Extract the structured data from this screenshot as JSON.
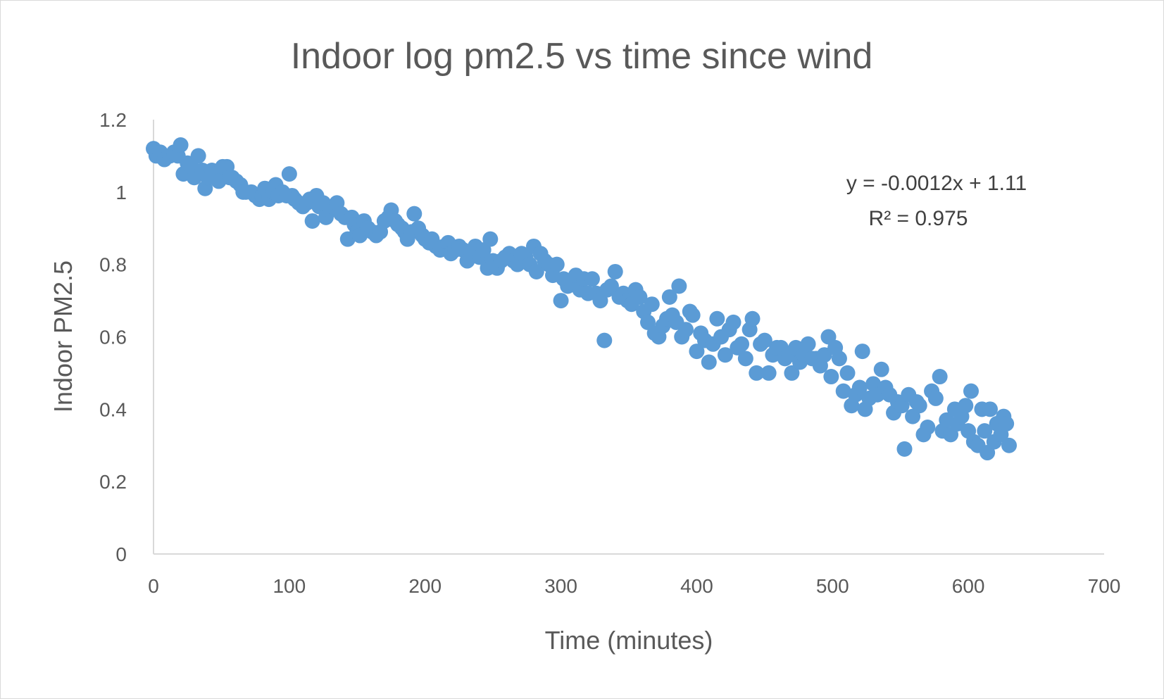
{
  "chart_data": {
    "type": "scatter",
    "title": "Indoor log pm2.5 vs time since wind",
    "xlabel": "Time (minutes)",
    "ylabel": "Indoor PM2.5",
    "xlim": [
      0,
      700
    ],
    "ylim": [
      0,
      1.2
    ],
    "x_ticks": [
      "0",
      "100",
      "200",
      "300",
      "400",
      "500",
      "600",
      "700"
    ],
    "y_ticks": [
      "0",
      "0.2",
      "0.4",
      "0.6",
      "0.8",
      "1",
      "1.2"
    ],
    "grid": false,
    "legend": "none",
    "marker_color": "#5b9bd5",
    "axis_color": "#d9d9d9",
    "trendline": {
      "equation": "y = -0.0012x + 1.11",
      "r_squared": "R² = 0.975"
    },
    "points": [
      [
        0,
        1.12
      ],
      [
        2,
        1.1
      ],
      [
        5,
        1.11
      ],
      [
        8,
        1.09
      ],
      [
        12,
        1.1
      ],
      [
        15,
        1.11
      ],
      [
        18,
        1.1
      ],
      [
        20,
        1.13
      ],
      [
        22,
        1.05
      ],
      [
        25,
        1.08
      ],
      [
        28,
        1.07
      ],
      [
        30,
        1.04
      ],
      [
        33,
        1.1
      ],
      [
        36,
        1.06
      ],
      [
        38,
        1.01
      ],
      [
        40,
        1.04
      ],
      [
        43,
        1.06
      ],
      [
        46,
        1.05
      ],
      [
        48,
        1.03
      ],
      [
        51,
        1.07
      ],
      [
        54,
        1.07
      ],
      [
        56,
        1.04
      ],
      [
        58,
        1.04
      ],
      [
        61,
        1.03
      ],
      [
        64,
        1.02
      ],
      [
        66,
        1.0
      ],
      [
        68,
        1.0
      ],
      [
        72,
        1.0
      ],
      [
        75,
        0.99
      ],
      [
        78,
        0.98
      ],
      [
        80,
        0.99
      ],
      [
        82,
        1.01
      ],
      [
        85,
        0.98
      ],
      [
        88,
        1.0
      ],
      [
        90,
        1.02
      ],
      [
        92,
        0.99
      ],
      [
        95,
        1.0
      ],
      [
        98,
        0.99
      ],
      [
        100,
        1.05
      ],
      [
        102,
        0.99
      ],
      [
        104,
        0.98
      ],
      [
        107,
        0.97
      ],
      [
        110,
        0.96
      ],
      [
        113,
        0.97
      ],
      [
        115,
        0.98
      ],
      [
        117,
        0.92
      ],
      [
        120,
        0.99
      ],
      [
        122,
        0.96
      ],
      [
        125,
        0.97
      ],
      [
        127,
        0.93
      ],
      [
        130,
        0.95
      ],
      [
        132,
        0.96
      ],
      [
        135,
        0.97
      ],
      [
        138,
        0.94
      ],
      [
        141,
        0.93
      ],
      [
        143,
        0.87
      ],
      [
        146,
        0.93
      ],
      [
        148,
        0.91
      ],
      [
        150,
        0.89
      ],
      [
        152,
        0.88
      ],
      [
        155,
        0.92
      ],
      [
        158,
        0.9
      ],
      [
        161,
        0.89
      ],
      [
        164,
        0.88
      ],
      [
        167,
        0.89
      ],
      [
        170,
        0.92
      ],
      [
        173,
        0.93
      ],
      [
        175,
        0.95
      ],
      [
        178,
        0.92
      ],
      [
        180,
        0.91
      ],
      [
        183,
        0.9
      ],
      [
        185,
        0.89
      ],
      [
        187,
        0.87
      ],
      [
        190,
        0.89
      ],
      [
        192,
        0.94
      ],
      [
        195,
        0.9
      ],
      [
        198,
        0.88
      ],
      [
        200,
        0.87
      ],
      [
        203,
        0.86
      ],
      [
        205,
        0.87
      ],
      [
        208,
        0.85
      ],
      [
        211,
        0.84
      ],
      [
        214,
        0.85
      ],
      [
        217,
        0.86
      ],
      [
        219,
        0.83
      ],
      [
        222,
        0.84
      ],
      [
        225,
        0.85
      ],
      [
        228,
        0.84
      ],
      [
        231,
        0.81
      ],
      [
        234,
        0.83
      ],
      [
        237,
        0.85
      ],
      [
        240,
        0.82
      ],
      [
        243,
        0.84
      ],
      [
        246,
        0.79
      ],
      [
        248,
        0.87
      ],
      [
        250,
        0.81
      ],
      [
        253,
        0.79
      ],
      [
        256,
        0.81
      ],
      [
        259,
        0.82
      ],
      [
        262,
        0.83
      ],
      [
        265,
        0.81
      ],
      [
        268,
        0.8
      ],
      [
        271,
        0.83
      ],
      [
        274,
        0.82
      ],
      [
        277,
        0.8
      ],
      [
        280,
        0.85
      ],
      [
        282,
        0.78
      ],
      [
        285,
        0.83
      ],
      [
        288,
        0.81
      ],
      [
        291,
        0.8
      ],
      [
        294,
        0.77
      ],
      [
        297,
        0.8
      ],
      [
        300,
        0.7
      ],
      [
        302,
        0.76
      ],
      [
        305,
        0.74
      ],
      [
        308,
        0.75
      ],
      [
        311,
        0.77
      ],
      [
        314,
        0.73
      ],
      [
        317,
        0.76
      ],
      [
        320,
        0.72
      ],
      [
        323,
        0.76
      ],
      [
        326,
        0.72
      ],
      [
        329,
        0.7
      ],
      [
        332,
        0.59
      ],
      [
        334,
        0.73
      ],
      [
        337,
        0.74
      ],
      [
        340,
        0.78
      ],
      [
        343,
        0.71
      ],
      [
        346,
        0.72
      ],
      [
        349,
        0.7
      ],
      [
        352,
        0.69
      ],
      [
        355,
        0.73
      ],
      [
        358,
        0.71
      ],
      [
        361,
        0.67
      ],
      [
        364,
        0.64
      ],
      [
        367,
        0.69
      ],
      [
        369,
        0.61
      ],
      [
        372,
        0.6
      ],
      [
        375,
        0.63
      ],
      [
        378,
        0.65
      ],
      [
        380,
        0.71
      ],
      [
        382,
        0.66
      ],
      [
        385,
        0.64
      ],
      [
        387,
        0.74
      ],
      [
        389,
        0.6
      ],
      [
        392,
        0.62
      ],
      [
        395,
        0.67
      ],
      [
        397,
        0.66
      ],
      [
        400,
        0.56
      ],
      [
        403,
        0.61
      ],
      [
        406,
        0.59
      ],
      [
        409,
        0.53
      ],
      [
        412,
        0.58
      ],
      [
        415,
        0.65
      ],
      [
        418,
        0.6
      ],
      [
        421,
        0.55
      ],
      [
        424,
        0.62
      ],
      [
        427,
        0.64
      ],
      [
        430,
        0.57
      ],
      [
        433,
        0.58
      ],
      [
        436,
        0.54
      ],
      [
        439,
        0.62
      ],
      [
        441,
        0.65
      ],
      [
        444,
        0.5
      ],
      [
        447,
        0.58
      ],
      [
        450,
        0.59
      ],
      [
        453,
        0.5
      ],
      [
        456,
        0.55
      ],
      [
        459,
        0.57
      ],
      [
        462,
        0.57
      ],
      [
        465,
        0.54
      ],
      [
        468,
        0.55
      ],
      [
        470,
        0.5
      ],
      [
        473,
        0.57
      ],
      [
        476,
        0.53
      ],
      [
        479,
        0.55
      ],
      [
        482,
        0.58
      ],
      [
        485,
        0.54
      ],
      [
        488,
        0.54
      ],
      [
        491,
        0.52
      ],
      [
        494,
        0.55
      ],
      [
        497,
        0.6
      ],
      [
        499,
        0.49
      ],
      [
        502,
        0.57
      ],
      [
        505,
        0.54
      ],
      [
        508,
        0.45
      ],
      [
        511,
        0.5
      ],
      [
        514,
        0.41
      ],
      [
        517,
        0.44
      ],
      [
        520,
        0.46
      ],
      [
        522,
        0.56
      ],
      [
        524,
        0.4
      ],
      [
        527,
        0.43
      ],
      [
        530,
        0.47
      ],
      [
        533,
        0.44
      ],
      [
        536,
        0.51
      ],
      [
        539,
        0.46
      ],
      [
        542,
        0.44
      ],
      [
        545,
        0.39
      ],
      [
        548,
        0.42
      ],
      [
        551,
        0.41
      ],
      [
        553,
        0.29
      ],
      [
        556,
        0.44
      ],
      [
        559,
        0.38
      ],
      [
        562,
        0.42
      ],
      [
        564,
        0.41
      ],
      [
        567,
        0.33
      ],
      [
        570,
        0.35
      ],
      [
        573,
        0.45
      ],
      [
        576,
        0.43
      ],
      [
        579,
        0.49
      ],
      [
        581,
        0.34
      ],
      [
        584,
        0.37
      ],
      [
        587,
        0.33
      ],
      [
        590,
        0.4
      ],
      [
        592,
        0.36
      ],
      [
        595,
        0.38
      ],
      [
        598,
        0.41
      ],
      [
        600,
        0.34
      ],
      [
        602,
        0.45
      ],
      [
        604,
        0.31
      ],
      [
        607,
        0.3
      ],
      [
        610,
        0.4
      ],
      [
        612,
        0.34
      ],
      [
        614,
        0.28
      ],
      [
        616,
        0.4
      ],
      [
        619,
        0.31
      ],
      [
        621,
        0.36
      ],
      [
        624,
        0.33
      ],
      [
        626,
        0.38
      ],
      [
        628,
        0.36
      ],
      [
        630,
        0.3
      ]
    ]
  }
}
